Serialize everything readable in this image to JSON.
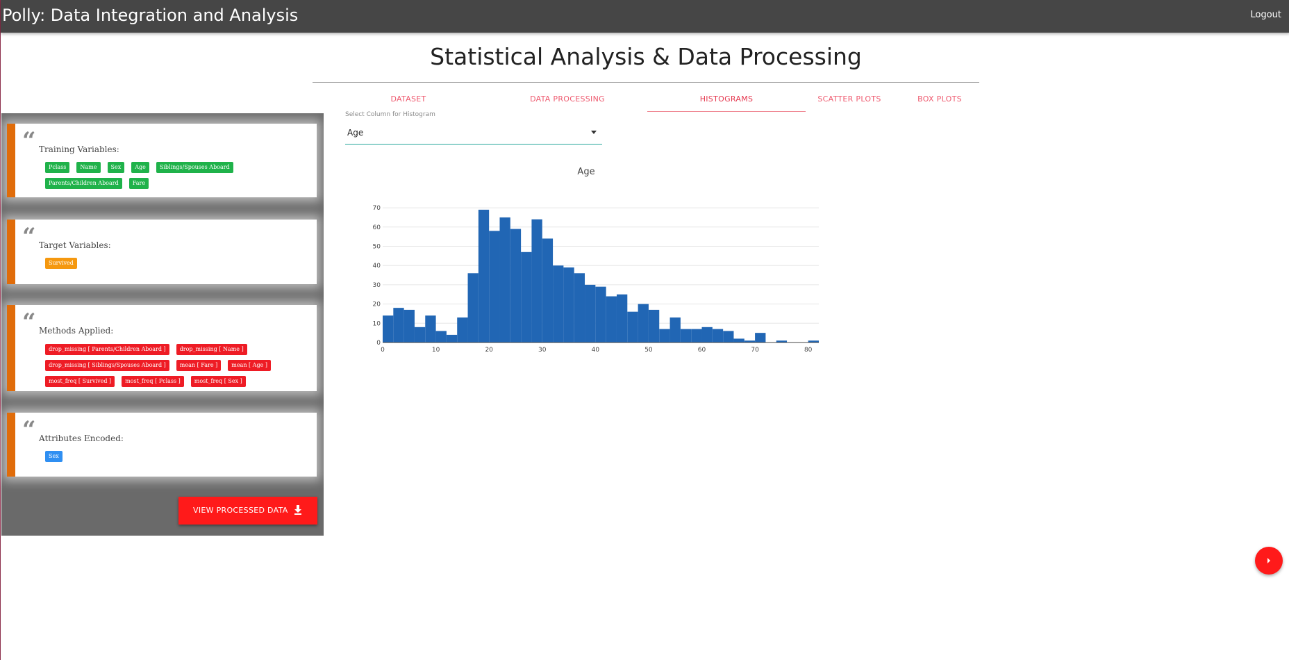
{
  "header": {
    "title": "Polly: Data Integration and Analysis",
    "logout_label": "Logout"
  },
  "page": {
    "title": "Statistical Analysis & Data Processing"
  },
  "tabs": [
    {
      "label": "DATASET"
    },
    {
      "label": "DATA PROCESSING"
    },
    {
      "label": "HISTOGRAMS",
      "active": true
    },
    {
      "label": "SCATTER PLOTS"
    },
    {
      "label": "BOX PLOTS"
    }
  ],
  "sidebar": {
    "training": {
      "title": "Training Variables:",
      "tags": [
        "Pclass",
        "Name",
        "Sex",
        "Age",
        "Siblings/Spouses Aboard",
        "Parents/Children Aboard",
        "Fare"
      ]
    },
    "target": {
      "title": "Target Variables:",
      "tags": [
        "Survived"
      ]
    },
    "methods": {
      "title": "Methods Applied:",
      "tags": [
        "drop_missing [ Parents/Children Aboard ]",
        "drop_missing [ Name ]",
        "drop_missing [ Siblings/Spouses Aboard ]",
        "mean [ Fare ]",
        "mean [ Age ]",
        "most_freq [ Survived ]",
        "most_freq [ Pclass ]",
        "most_freq [ Sex ]"
      ]
    },
    "encoded": {
      "title": "Attributes Encoded:",
      "tags": [
        "Sex"
      ]
    },
    "view_button_label": "VIEW PROCESSED DATA"
  },
  "select": {
    "label": "Select Column for Histogram",
    "value": "Age"
  },
  "colors": {
    "bar": "#2166b4",
    "tag_green": "#1fb24a",
    "tag_orange": "#f5980f",
    "tag_red": "#ee1c25",
    "tag_blue": "#2f8ff2",
    "accent_red": "#ff1a1a",
    "card_border": "#e06c0a"
  },
  "icons": {
    "download": "download-icon",
    "fab": "chevron-right-icon"
  },
  "chart_data": {
    "type": "bar",
    "title": "Age",
    "bin_width": 2,
    "bin_start": 0,
    "values": [
      14,
      18,
      17,
      8,
      14,
      6,
      4,
      13,
      36,
      69,
      58,
      65,
      59,
      47,
      64,
      54,
      40,
      39,
      36,
      30,
      29,
      24,
      25,
      16,
      20,
      17,
      7,
      13,
      7,
      7,
      8,
      7,
      6,
      2,
      1,
      5,
      0,
      1,
      0,
      0,
      1
    ],
    "xlim": [
      0,
      82
    ],
    "ylim": [
      0,
      74
    ],
    "xticks": [
      0,
      10,
      20,
      30,
      40,
      50,
      60,
      70,
      80
    ],
    "yticks": [
      0,
      10,
      20,
      30,
      40,
      50,
      60,
      70
    ],
    "grid": true
  }
}
